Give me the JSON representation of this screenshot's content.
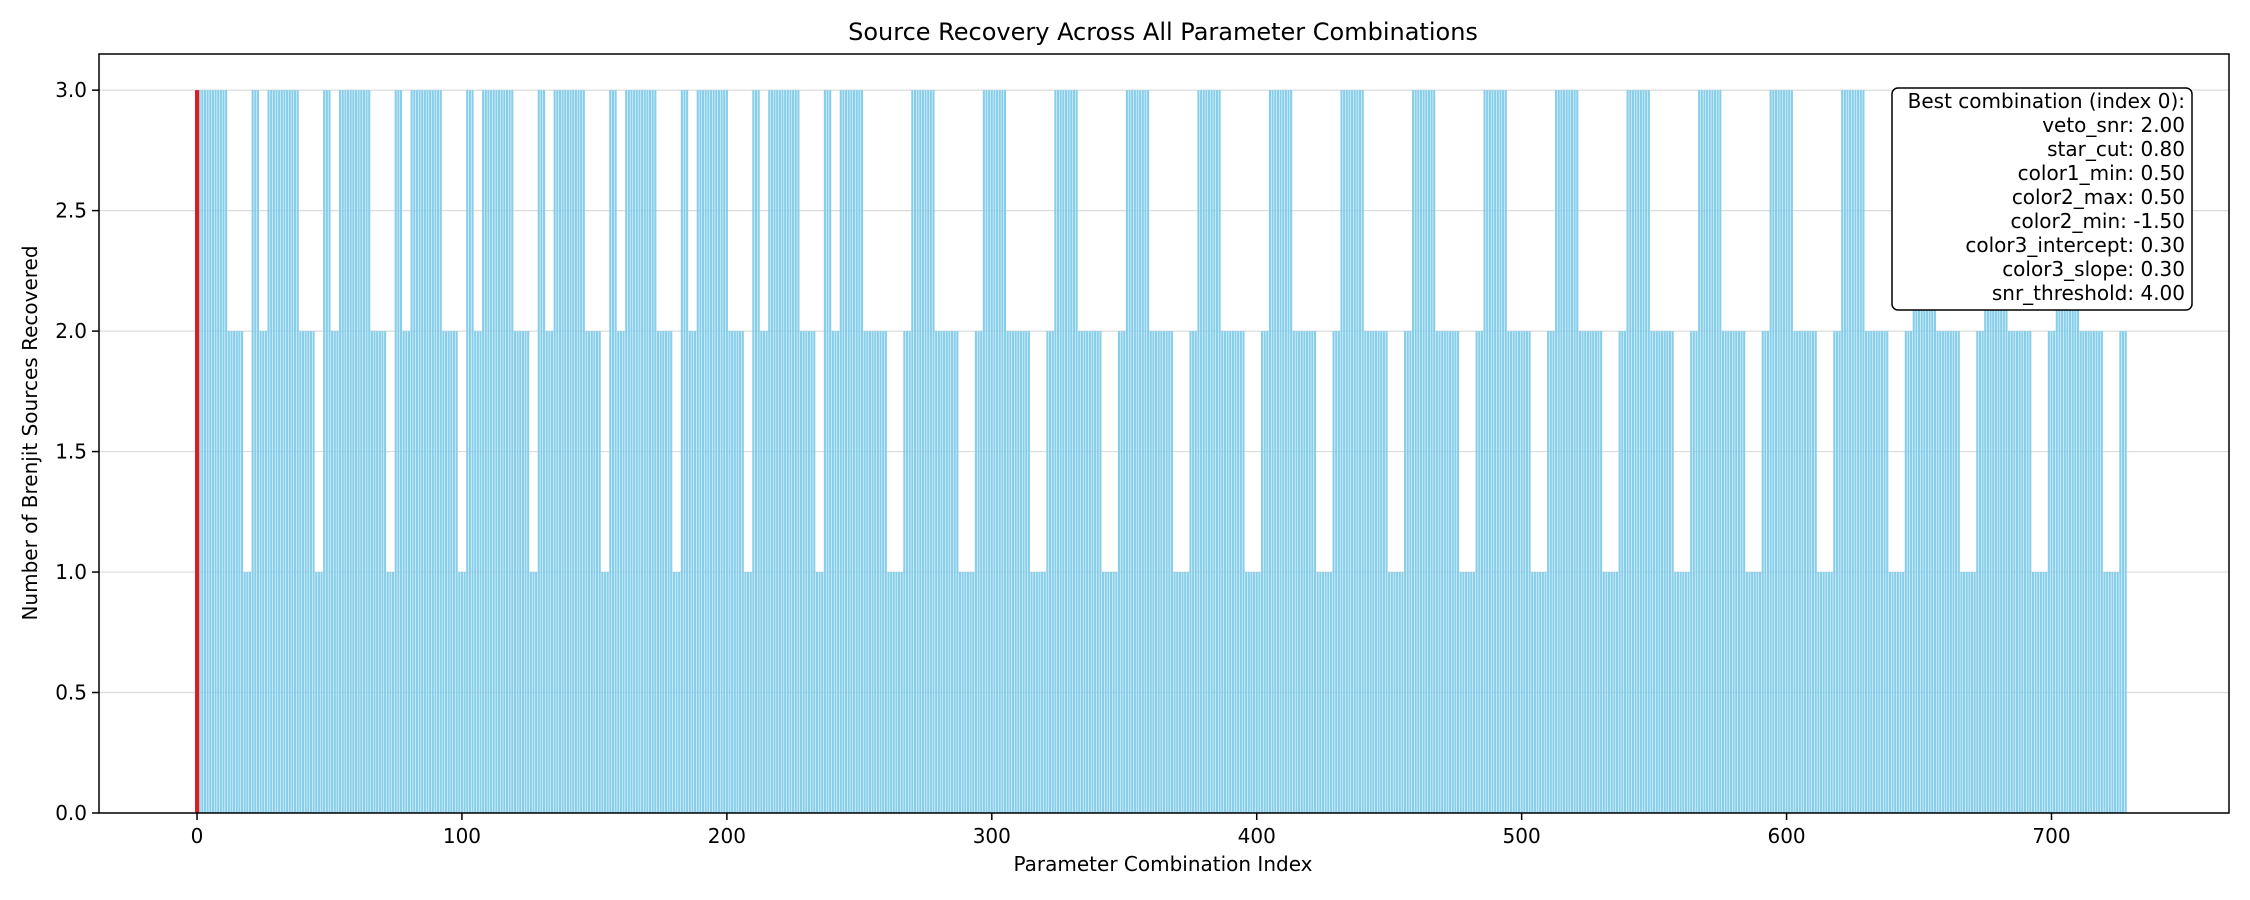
{
  "chart_data": {
    "type": "bar",
    "title": "Source Recovery Across All Parameter Combinations",
    "xlabel": "Parameter Combination Index",
    "ylabel": "Number of Brenjit Sources Recovered",
    "xlim": [
      -37,
      767
    ],
    "ylim": [
      0,
      3.15
    ],
    "x_ticks": [
      0,
      100,
      200,
      300,
      400,
      500,
      600,
      700
    ],
    "y_ticks": [
      0.0,
      0.5,
      1.0,
      1.5,
      2.0,
      2.5,
      3.0
    ],
    "y_tick_labels": [
      "0.0",
      "0.5",
      "1.0",
      "1.5",
      "2.0",
      "2.5",
      "3.0"
    ],
    "grid": "y-axis only",
    "bar_count": 729,
    "x_start": 0,
    "value_pattern": {
      "period": 27,
      "block_length": 9,
      "block_value_sets": [
        [
          3,
          3,
          3,
          2,
          2,
          2,
          2,
          2,
          2
        ],
        [
          1,
          1,
          1,
          3,
          3,
          3,
          2,
          2,
          2
        ]
      ],
      "block_value_sets_after_index_243": [
        [
          2,
          2,
          2,
          2,
          2,
          2,
          2,
          2,
          2
        ],
        [
          1,
          1,
          1,
          1,
          1,
          1,
          2,
          2,
          2
        ]
      ]
    },
    "highlight": {
      "index": 0,
      "value": 3
    },
    "colors": {
      "bars": "#87ceeb",
      "highlight": "#e31a1c"
    },
    "annotation": {
      "lines": [
        "Best combination (index 0):",
        "veto_snr: 2.00",
        "star_cut: 0.80",
        "color1_min: 0.50",
        "color2_max: 0.50",
        "color2_min: -1.50",
        "color3_intercept: 0.30",
        "color3_slope: 0.30",
        "snr_threshold: 4.00"
      ],
      "placement": "top-right"
    }
  }
}
